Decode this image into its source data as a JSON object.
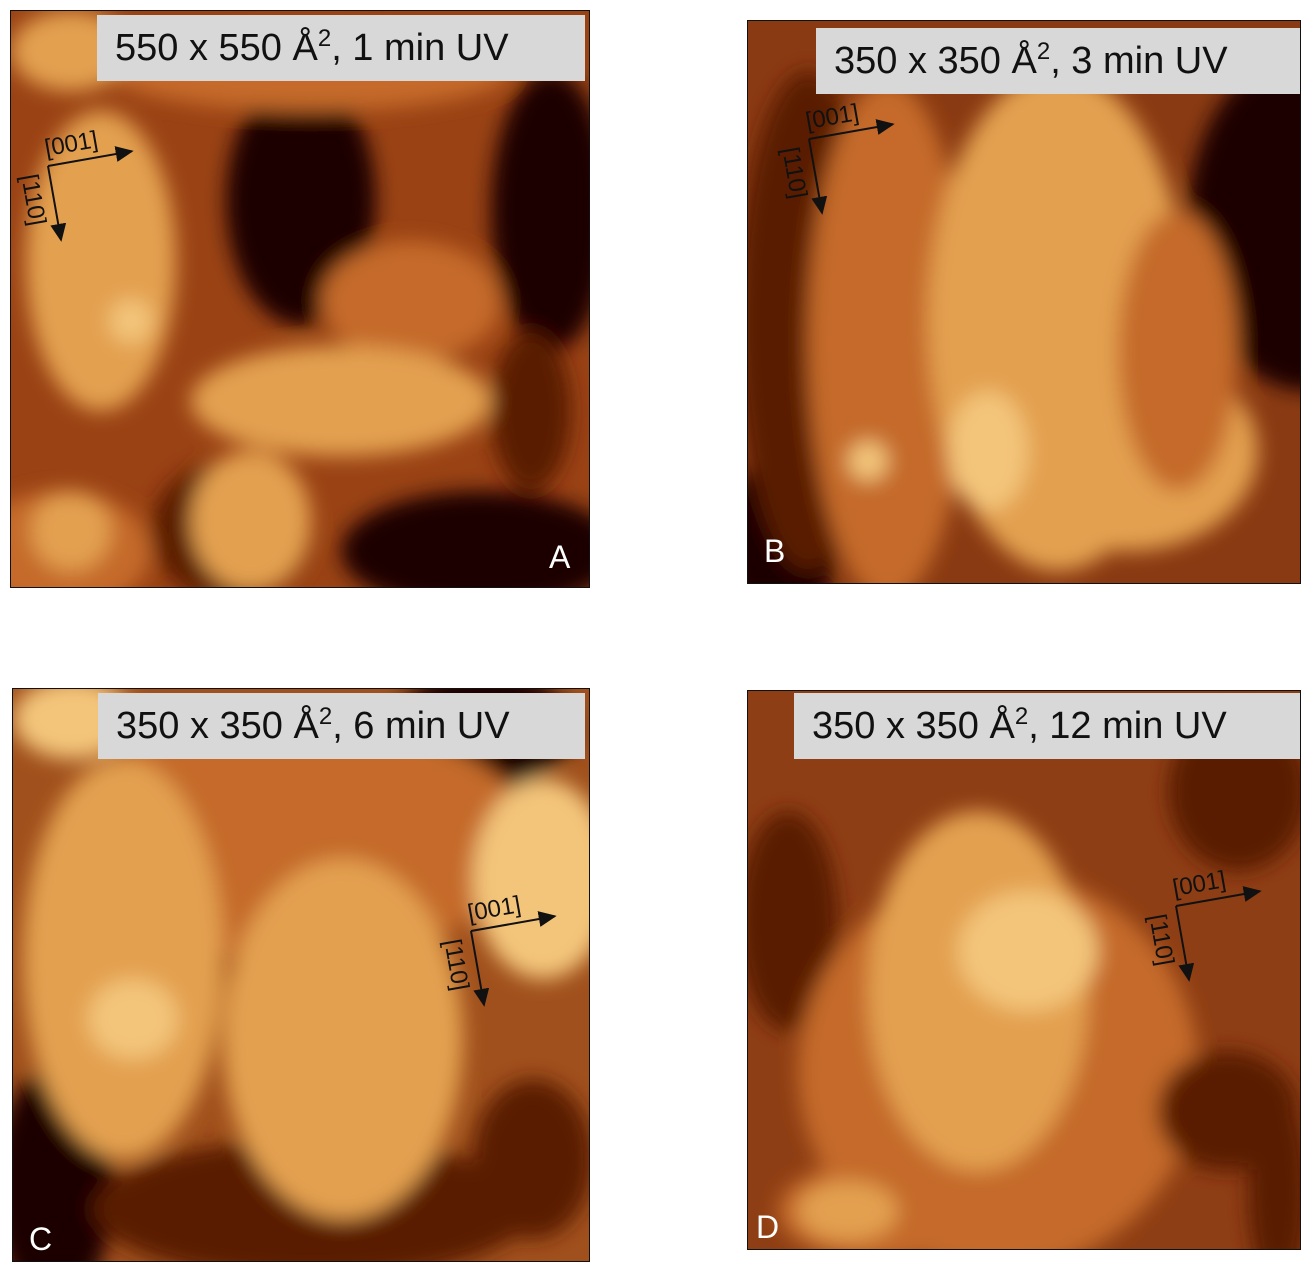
{
  "panels": [
    {
      "caption": {
        "size": "550 x 550 Å",
        "exponent": "2",
        "exposure": ", 1 min UV"
      },
      "letter": "A",
      "axes": [
        "[001]",
        "[110]"
      ]
    },
    {
      "caption": {
        "size": "350 x 350 Å",
        "exponent": "2",
        "exposure": ", 3 min UV"
      },
      "letter": "B",
      "axes": [
        "[001]",
        "[110]"
      ]
    },
    {
      "caption": {
        "size": "350 x 350 Å",
        "exponent": "2",
        "exposure": ", 6 min UV"
      },
      "letter": "C",
      "axes": [
        "[001]",
        "[110]"
      ]
    },
    {
      "caption": {
        "size": "350 x 350 Å",
        "exponent": "2",
        "exposure": ", 12 min UV"
      },
      "letter": "D",
      "axes": [
        "[001]",
        "[110]"
      ]
    }
  ]
}
